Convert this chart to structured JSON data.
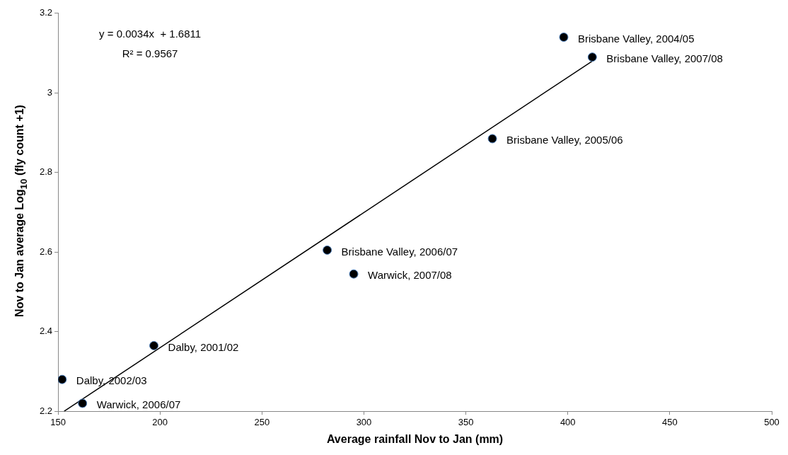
{
  "chart_data": {
    "type": "scatter",
    "xlabel": "Average rainfall Nov to Jan (mm)",
    "ylabel": "Nov to Jan average Log$_{10}$ (fly count +1)",
    "xlim": [
      150,
      500
    ],
    "xticks": [
      150,
      200,
      250,
      300,
      350,
      400,
      450,
      500
    ],
    "ylim": [
      2.2,
      3.2
    ],
    "yticks": [
      2.2,
      {
        "value": 2.4,
        "label": "2.4"
      },
      {
        "value": 2.6,
        "label": "2.6"
      },
      {
        "value": 2.8,
        "label": "2.8"
      },
      3,
      {
        "value": 3.2,
        "label": "3.2"
      }
    ],
    "grid": false,
    "marker": "circle",
    "series": [
      {
        "color": "#000000",
        "x": [
          152,
          162,
          197,
          282,
          295,
          363,
          398,
          412
        ],
        "values": [
          2.28,
          2.22,
          2.365,
          2.605,
          2.545,
          2.885,
          3.14,
          3.09
        ]
      },
      {
        "type": "line",
        "color": "#000000",
        "marker": "none",
        "x": [
          153,
          412
        ],
        "values": [
          2.2,
          3.08
        ]
      }
    ],
    "annotations": [
      "y = 0.0034x  + 1.6811",
      "R² = 0.9567",
      {
        "text": "Dalby, 2002/03",
        "x": 152,
        "y": 2.28
      },
      {
        "text": "Warwick, 2006/07",
        "x": 162,
        "y": 2.22
      },
      {
        "text": "Dalby, 2001/02",
        "x": 197,
        "y": 2.365
      },
      {
        "text": "Brisbane Valley, 2006/07",
        "x": 282,
        "y": 2.605
      },
      {
        "text": "Warwick, 2007/08",
        "x": 295,
        "y": 2.545
      },
      {
        "text": "Brisbane Valley, 2005/06",
        "x": 363,
        "y": 2.885
      },
      {
        "text": "Brisbane Valley, 2004/05",
        "x": 398,
        "y": 3.14
      },
      {
        "text": "Brisbane Valley, 2007/08",
        "x": 412,
        "y": 3.09
      }
    ]
  }
}
